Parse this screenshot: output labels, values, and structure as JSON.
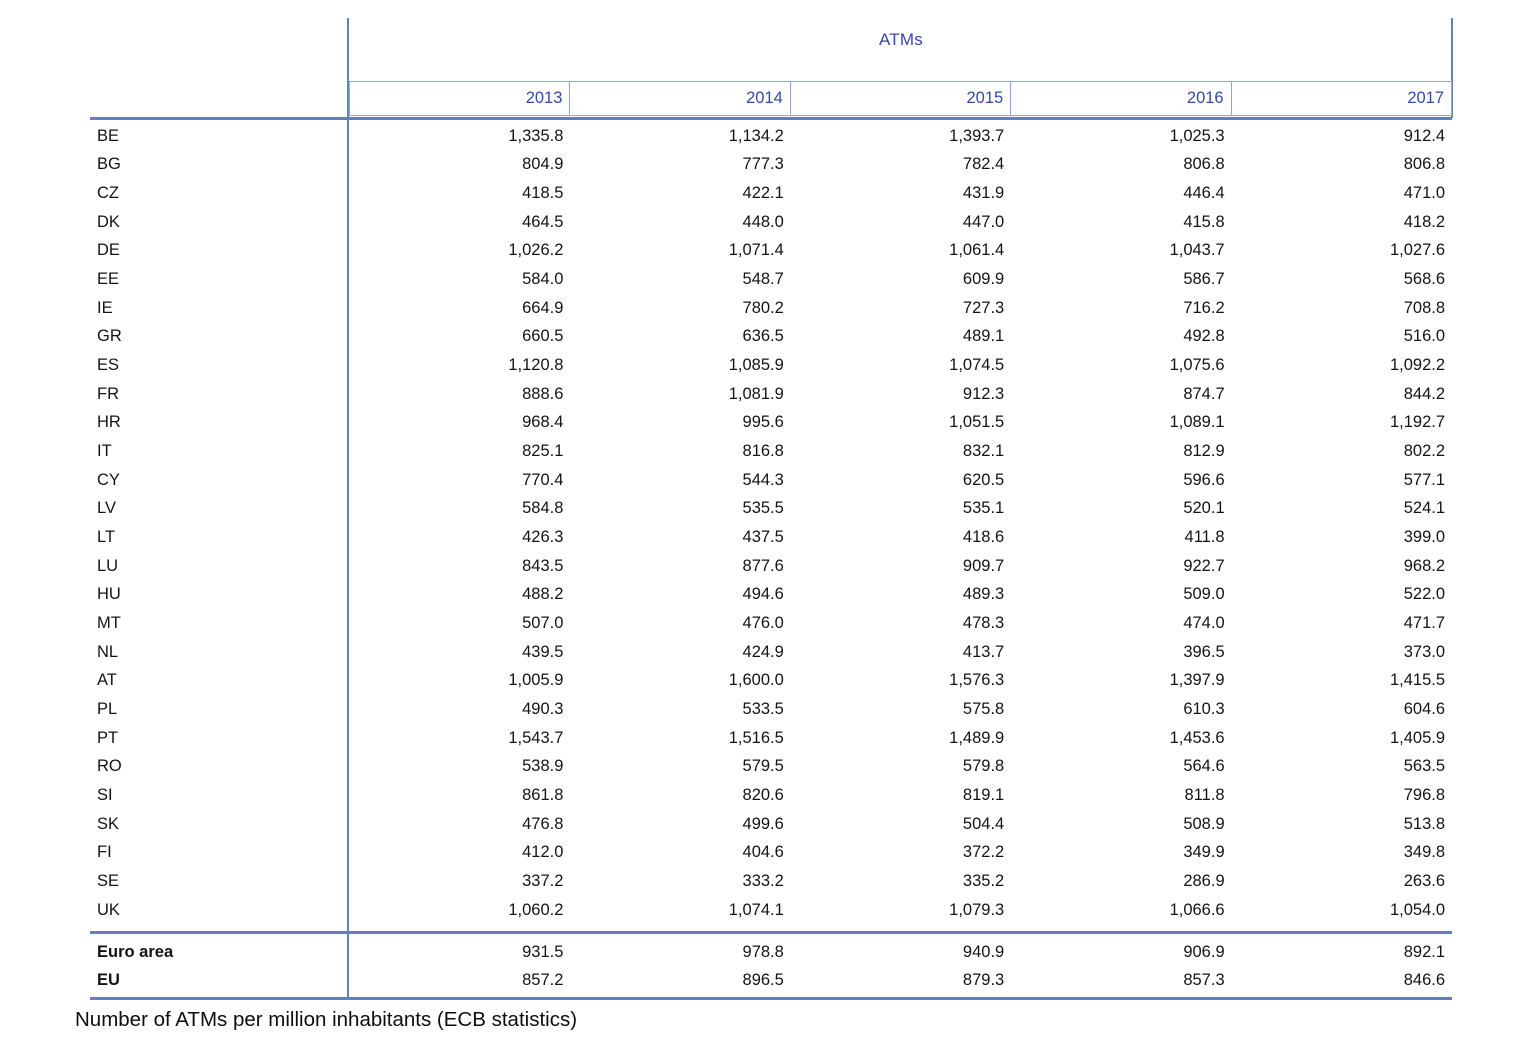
{
  "chart_data": {
    "type": "table",
    "title": "ATMs",
    "caption": "Number of ATMs per million inhabitants (ECB statistics)",
    "columns": [
      "2013",
      "2014",
      "2015",
      "2016",
      "2017"
    ],
    "rows": [
      {
        "label": "BE",
        "values": [
          1335.8,
          1134.2,
          1393.7,
          1025.3,
          912.4
        ]
      },
      {
        "label": "BG",
        "values": [
          804.9,
          777.3,
          782.4,
          806.8,
          806.8
        ]
      },
      {
        "label": "CZ",
        "values": [
          418.5,
          422.1,
          431.9,
          446.4,
          471.0
        ]
      },
      {
        "label": "DK",
        "values": [
          464.5,
          448.0,
          447.0,
          415.8,
          418.2
        ]
      },
      {
        "label": "DE",
        "values": [
          1026.2,
          1071.4,
          1061.4,
          1043.7,
          1027.6
        ]
      },
      {
        "label": "EE",
        "values": [
          584.0,
          548.7,
          609.9,
          586.7,
          568.6
        ]
      },
      {
        "label": "IE",
        "values": [
          664.9,
          780.2,
          727.3,
          716.2,
          708.8
        ]
      },
      {
        "label": "GR",
        "values": [
          660.5,
          636.5,
          489.1,
          492.8,
          516.0
        ]
      },
      {
        "label": "ES",
        "values": [
          1120.8,
          1085.9,
          1074.5,
          1075.6,
          1092.2
        ]
      },
      {
        "label": "FR",
        "values": [
          888.6,
          1081.9,
          912.3,
          874.7,
          844.2
        ]
      },
      {
        "label": "HR",
        "values": [
          968.4,
          995.6,
          1051.5,
          1089.1,
          1192.7
        ]
      },
      {
        "label": "IT",
        "values": [
          825.1,
          816.8,
          832.1,
          812.9,
          802.2
        ]
      },
      {
        "label": "CY",
        "values": [
          770.4,
          544.3,
          620.5,
          596.6,
          577.1
        ]
      },
      {
        "label": "LV",
        "values": [
          584.8,
          535.5,
          535.1,
          520.1,
          524.1
        ]
      },
      {
        "label": "LT",
        "values": [
          426.3,
          437.5,
          418.6,
          411.8,
          399.0
        ]
      },
      {
        "label": "LU",
        "values": [
          843.5,
          877.6,
          909.7,
          922.7,
          968.2
        ]
      },
      {
        "label": "HU",
        "values": [
          488.2,
          494.6,
          489.3,
          509.0,
          522.0
        ]
      },
      {
        "label": "MT",
        "values": [
          507.0,
          476.0,
          478.3,
          474.0,
          471.7
        ]
      },
      {
        "label": "NL",
        "values": [
          439.5,
          424.9,
          413.7,
          396.5,
          373.0
        ]
      },
      {
        "label": "AT",
        "values": [
          1005.9,
          1600.0,
          1576.3,
          1397.9,
          1415.5
        ]
      },
      {
        "label": "PL",
        "values": [
          490.3,
          533.5,
          575.8,
          610.3,
          604.6
        ]
      },
      {
        "label": "PT",
        "values": [
          1543.7,
          1516.5,
          1489.9,
          1453.6,
          1405.9
        ]
      },
      {
        "label": "RO",
        "values": [
          538.9,
          579.5,
          579.8,
          564.6,
          563.5
        ]
      },
      {
        "label": "SI",
        "values": [
          861.8,
          820.6,
          819.1,
          811.8,
          796.8
        ]
      },
      {
        "label": "SK",
        "values": [
          476.8,
          499.6,
          504.4,
          508.9,
          513.8
        ]
      },
      {
        "label": "FI",
        "values": [
          412.0,
          404.6,
          372.2,
          349.9,
          349.8
        ]
      },
      {
        "label": "SE",
        "values": [
          337.2,
          333.2,
          335.2,
          286.9,
          263.6
        ]
      },
      {
        "label": "UK",
        "values": [
          1060.2,
          1074.1,
          1079.3,
          1066.6,
          1054.0
        ]
      }
    ],
    "summary_rows": [
      {
        "label": "Euro area",
        "values": [
          931.5,
          978.8,
          940.9,
          906.9,
          892.1
        ]
      },
      {
        "label": "EU",
        "values": [
          857.2,
          896.5,
          879.3,
          857.3,
          846.6
        ]
      }
    ],
    "value_format": "thousands comma, 1 decimal",
    "layout": {
      "value_align": "right",
      "header_text_color": "#3448ae",
      "rule_color": "#5f7fbe",
      "body_text_color": "#141414",
      "grid": "partial: header boxes, column divider, summary rules"
    }
  }
}
